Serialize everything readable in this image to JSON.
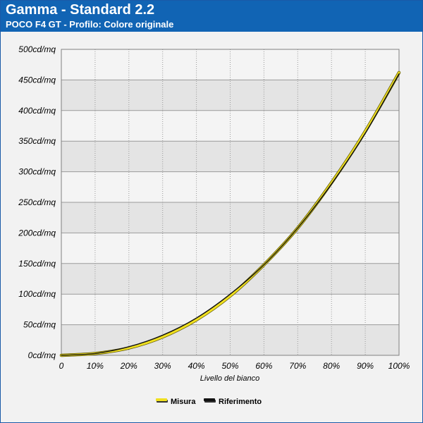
{
  "header": {
    "title": "Gamma - Standard 2.2",
    "subtitle": "POCO F4 GT - Profilo: Colore originale"
  },
  "colors": {
    "header_bg": "#1164b4",
    "misura": "#f0e020",
    "riferimento": "#111111",
    "band_dark": "#e4e4e4",
    "band_light": "#f4f4f4"
  },
  "chart_data": {
    "type": "line",
    "title": "Gamma - Standard 2.2",
    "subtitle": "POCO F4 GT - Profilo: Colore originale",
    "xlabel": "Livello del bianco",
    "ylabel": "",
    "x_tick_labels": [
      "0",
      "10%",
      "20%",
      "30%",
      "40%",
      "50%",
      "60%",
      "70%",
      "80%",
      "90%",
      "100%"
    ],
    "y_tick_labels": [
      "0cd/mq",
      "50cd/mq",
      "100cd/mq",
      "150cd/mq",
      "200cd/mq",
      "250cd/mq",
      "300cd/mq",
      "350cd/mq",
      "400cd/mq",
      "450cd/mq",
      "500cd/mq"
    ],
    "xlim": [
      0,
      100
    ],
    "ylim": [
      0,
      500
    ],
    "grid": true,
    "legend_position": "bottom-center",
    "x": [
      0,
      10,
      20,
      30,
      40,
      50,
      60,
      70,
      80,
      90,
      100
    ],
    "series": [
      {
        "name": "Misura",
        "color": "#f0e020",
        "values": [
          0,
          3,
          12,
          30,
          58,
          97,
          148,
          208,
          282,
          366,
          462
        ]
      },
      {
        "name": "Riferimento",
        "color": "#111111",
        "values": [
          0,
          3,
          14,
          33,
          61,
          100,
          148,
          208,
          280,
          363,
          460
        ]
      }
    ]
  }
}
